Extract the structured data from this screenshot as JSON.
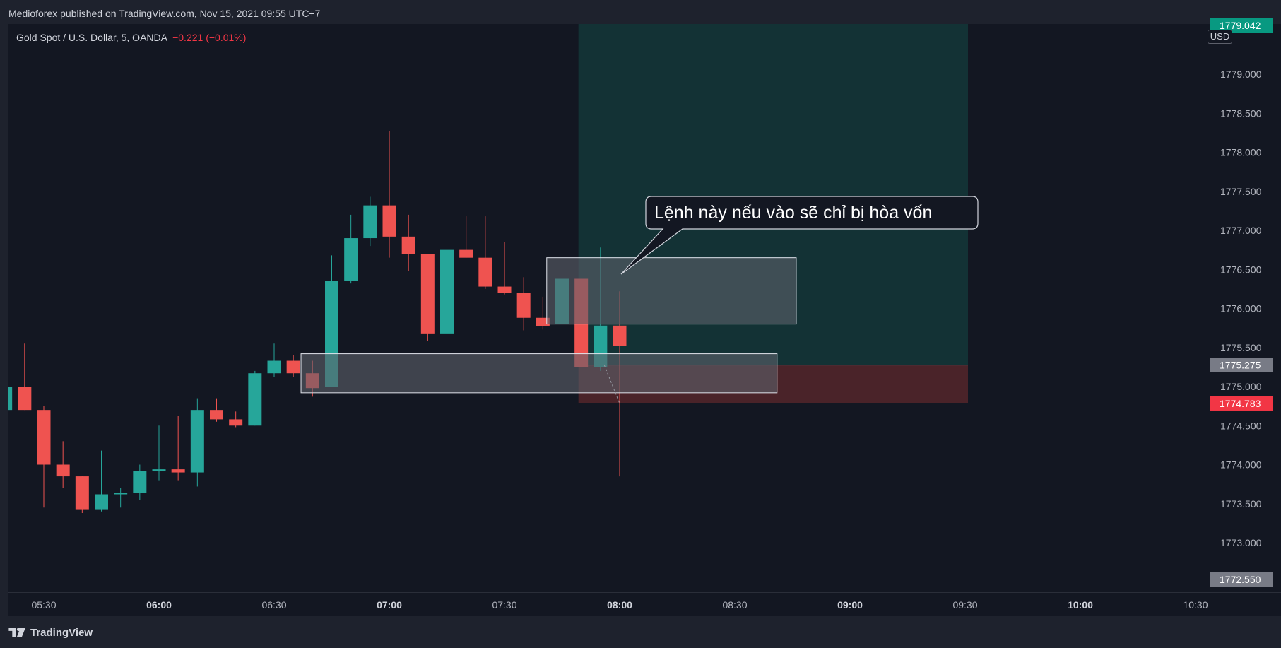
{
  "header": {
    "published": "Medioforex published on TradingView.com, Nov 15, 2021 09:55 UTC+7"
  },
  "legend": {
    "symbol": "Gold Spot / U.S. Dollar, 5, OANDA",
    "change": "−0.221 (−0.01%)"
  },
  "annotation": {
    "text": "Lệnh này nếu vào sẽ chỉ bị hòa vốn"
  },
  "axis": {
    "currency": "USD",
    "current_price": "1775.275",
    "stop_price": "1774.783",
    "low_price": "1772.550",
    "top_price": "1779.042"
  },
  "footer": {
    "brand": "TradingView"
  },
  "colors": {
    "up": "#26a69a",
    "down": "#ef5350",
    "background": "#131722",
    "profit_zone": "#133235",
    "loss_zone": "#4a2329",
    "box_fill": "#5d606b",
    "box_stroke": "#e0e3eb"
  },
  "chart_data": {
    "type": "candlestick",
    "x_tick_labels": [
      "05:30",
      "06:00",
      "06:30",
      "07:00",
      "07:30",
      "08:00",
      "08:30",
      "09:00",
      "09:30",
      "10:00",
      "10:30"
    ],
    "x_tick_bold": [
      false,
      true,
      false,
      true,
      false,
      true,
      false,
      true,
      false,
      true,
      false
    ],
    "x_tick_minutes": [
      330,
      360,
      390,
      420,
      450,
      480,
      510,
      540,
      570,
      600,
      630
    ],
    "y_ticks": [
      1773.0,
      1773.5,
      1774.0,
      1774.5,
      1775.0,
      1775.5,
      1776.0,
      1776.5,
      1777.0,
      1777.5,
      1778.0,
      1778.5,
      1779.0
    ],
    "y_tick_labels": [
      "1773.000",
      "1773.500",
      "1774.000",
      "1774.500",
      "1775.000",
      "1775.500",
      "1776.000",
      "1776.500",
      "1777.000",
      "1777.500",
      "1778.000",
      "1778.500",
      "1779.000"
    ],
    "candles": [
      {
        "t": 320,
        "o": 1774.7,
        "h": 1775.15,
        "l": 1774.7,
        "c": 1775.0
      },
      {
        "t": 325,
        "o": 1775.0,
        "h": 1775.55,
        "l": 1774.7,
        "c": 1774.7
      },
      {
        "t": 330,
        "o": 1774.7,
        "h": 1774.75,
        "l": 1773.45,
        "c": 1774.0
      },
      {
        "t": 335,
        "o": 1774.0,
        "h": 1774.3,
        "l": 1773.7,
        "c": 1773.85
      },
      {
        "t": 340,
        "o": 1773.85,
        "h": 1773.85,
        "l": 1773.38,
        "c": 1773.42
      },
      {
        "t": 345,
        "o": 1773.42,
        "h": 1774.18,
        "l": 1773.4,
        "c": 1773.62
      },
      {
        "t": 350,
        "o": 1773.62,
        "h": 1773.7,
        "l": 1773.45,
        "c": 1773.64
      },
      {
        "t": 355,
        "o": 1773.64,
        "h": 1774.0,
        "l": 1773.55,
        "c": 1773.92
      },
      {
        "t": 360,
        "o": 1773.92,
        "h": 1774.5,
        "l": 1773.8,
        "c": 1773.94
      },
      {
        "t": 365,
        "o": 1773.94,
        "h": 1774.62,
        "l": 1773.8,
        "c": 1773.9
      },
      {
        "t": 370,
        "o": 1773.9,
        "h": 1774.85,
        "l": 1773.72,
        "c": 1774.7
      },
      {
        "t": 375,
        "o": 1774.7,
        "h": 1774.85,
        "l": 1774.55,
        "c": 1774.58
      },
      {
        "t": 380,
        "o": 1774.58,
        "h": 1774.68,
        "l": 1774.48,
        "c": 1774.5
      },
      {
        "t": 385,
        "o": 1774.5,
        "h": 1775.2,
        "l": 1774.5,
        "c": 1775.17
      },
      {
        "t": 390,
        "o": 1775.17,
        "h": 1775.55,
        "l": 1775.12,
        "c": 1775.33
      },
      {
        "t": 395,
        "o": 1775.33,
        "h": 1775.4,
        "l": 1775.12,
        "c": 1775.17
      },
      {
        "t": 400,
        "o": 1775.17,
        "h": 1775.33,
        "l": 1774.87,
        "c": 1774.98
      },
      {
        "t": 405,
        "o": 1775.0,
        "h": 1776.68,
        "l": 1775.0,
        "c": 1776.35
      },
      {
        "t": 410,
        "o": 1776.35,
        "h": 1777.2,
        "l": 1776.32,
        "c": 1776.9
      },
      {
        "t": 415,
        "o": 1776.9,
        "h": 1777.43,
        "l": 1776.8,
        "c": 1777.32
      },
      {
        "t": 420,
        "o": 1777.32,
        "h": 1778.27,
        "l": 1776.65,
        "c": 1776.92
      },
      {
        "t": 425,
        "o": 1776.92,
        "h": 1777.2,
        "l": 1776.48,
        "c": 1776.7
      },
      {
        "t": 430,
        "o": 1776.7,
        "h": 1776.7,
        "l": 1775.58,
        "c": 1775.68
      },
      {
        "t": 435,
        "o": 1775.68,
        "h": 1776.85,
        "l": 1775.68,
        "c": 1776.75
      },
      {
        "t": 440,
        "o": 1776.75,
        "h": 1777.18,
        "l": 1776.65,
        "c": 1776.65
      },
      {
        "t": 445,
        "o": 1776.65,
        "h": 1777.18,
        "l": 1776.25,
        "c": 1776.28
      },
      {
        "t": 450,
        "o": 1776.28,
        "h": 1776.85,
        "l": 1776.18,
        "c": 1776.2
      },
      {
        "t": 455,
        "o": 1776.2,
        "h": 1776.4,
        "l": 1775.72,
        "c": 1775.88
      },
      {
        "t": 460,
        "o": 1775.88,
        "h": 1776.15,
        "l": 1775.73,
        "c": 1775.77
      },
      {
        "t": 465,
        "o": 1775.8,
        "h": 1776.62,
        "l": 1775.8,
        "c": 1776.38
      },
      {
        "t": 470,
        "o": 1776.38,
        "h": 1776.38,
        "l": 1775.25,
        "c": 1775.25
      },
      {
        "t": 475,
        "o": 1775.25,
        "h": 1776.78,
        "l": 1775.2,
        "c": 1775.78
      },
      {
        "t": 480,
        "o": 1775.78,
        "h": 1776.22,
        "l": 1773.85,
        "c": 1775.52
      }
    ],
    "boxes": [
      {
        "t1": 461,
        "t2": 526,
        "p1": 1775.8,
        "p2": 1776.65
      },
      {
        "t1": 397,
        "t2": 521,
        "p1": 1774.92,
        "p2": 1775.42
      }
    ],
    "position": {
      "t1": 470,
      "t2": 570,
      "entry": 1775.275,
      "stop": 1774.783,
      "target": 1779.9
    },
    "price_labels": {
      "current": 1775.275,
      "stop": 1774.783,
      "low": 1772.55,
      "top": 1779.042
    }
  }
}
